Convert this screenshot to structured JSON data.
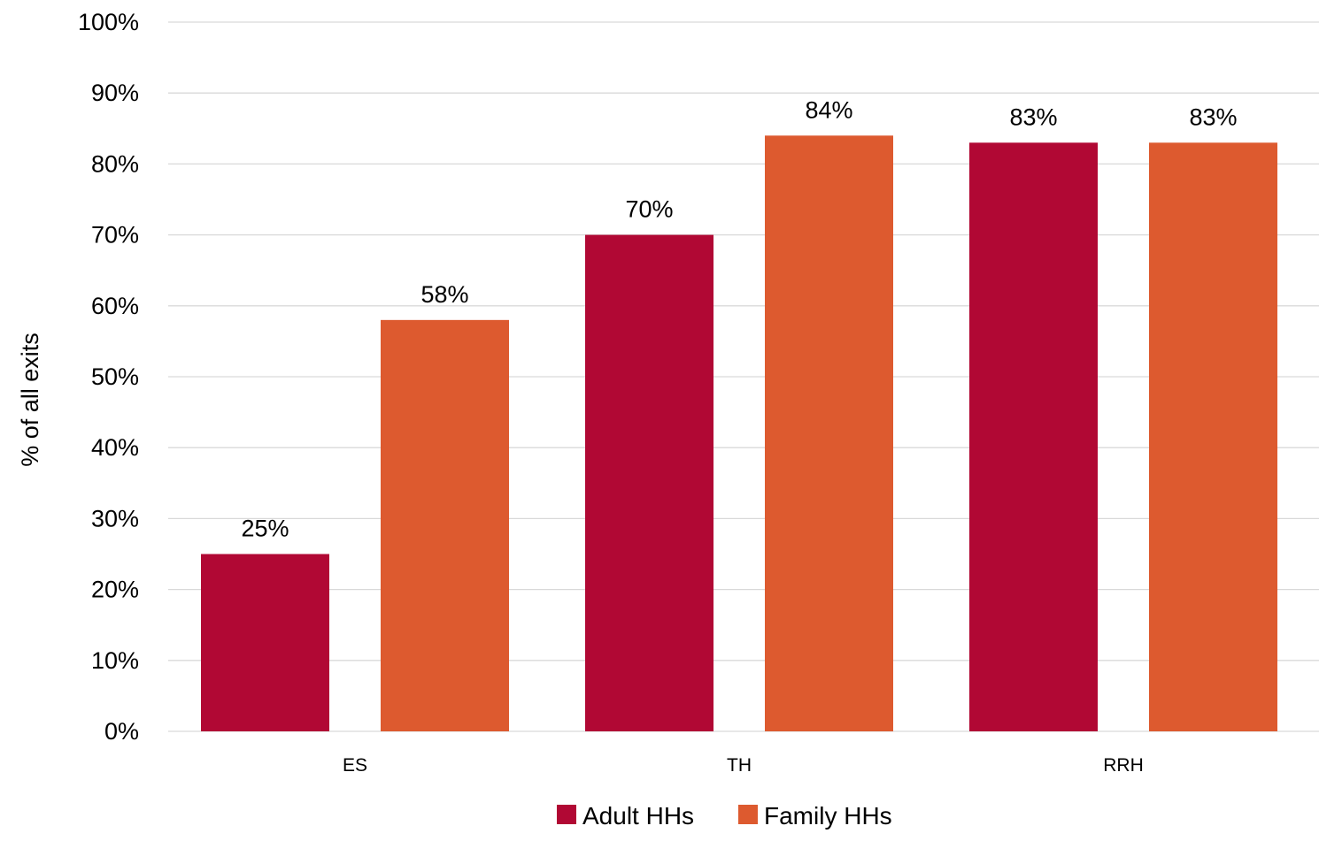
{
  "chart_data": {
    "type": "bar",
    "categories": [
      "ES",
      "TH",
      "RRH"
    ],
    "series": [
      {
        "name": "Adult HHs",
        "values": [
          25,
          70,
          83
        ],
        "labels": [
          "25%",
          "70%",
          "83%"
        ],
        "color": "#b10834"
      },
      {
        "name": "Family HHs",
        "values": [
          58,
          84,
          83
        ],
        "labels": [
          "58%",
          "84%",
          "83%"
        ],
        "color": "#dd5a2f"
      }
    ],
    "ylabel": "% of all exits",
    "xlabel": "",
    "ylim": [
      0,
      100
    ],
    "yticks": [
      "0%",
      "10%",
      "20%",
      "30%",
      "40%",
      "50%",
      "60%",
      "70%",
      "80%",
      "90%",
      "100%"
    ],
    "grid": true,
    "legend": "bottom-center"
  }
}
